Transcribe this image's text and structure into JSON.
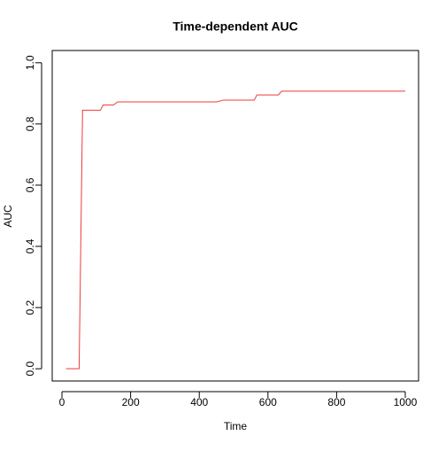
{
  "chart_data": {
    "type": "line",
    "title": "Time-dependent AUC",
    "x_label": "Time",
    "y_label": "AUC",
    "x": [
      12,
      50,
      60,
      112,
      120,
      150,
      162,
      450,
      470,
      560,
      568,
      630,
      640,
      1000
    ],
    "series": [
      {
        "name": "AUC",
        "color": "#ee3b3b",
        "values": [
          0,
          0,
          0.845,
          0.845,
          0.862,
          0.862,
          0.872,
          0.872,
          0.878,
          0.878,
          0.895,
          0.895,
          0.907,
          0.907
        ]
      }
    ],
    "xlim": [
      -28.4,
      1038.7
    ],
    "ylim": [
      -0.04,
      1.04
    ],
    "xticks": [
      0,
      200,
      400,
      600,
      800,
      1000
    ],
    "yticks": [
      {
        "value": 0,
        "label": "0.0"
      },
      {
        "value": 0.2,
        "label": "0.2"
      },
      {
        "value": 0.4,
        "label": "0.4"
      },
      {
        "value": 0.6,
        "label": "0.6"
      },
      {
        "value": 0.8,
        "label": "0.8"
      },
      {
        "value": 1,
        "label": "1.0"
      }
    ]
  }
}
